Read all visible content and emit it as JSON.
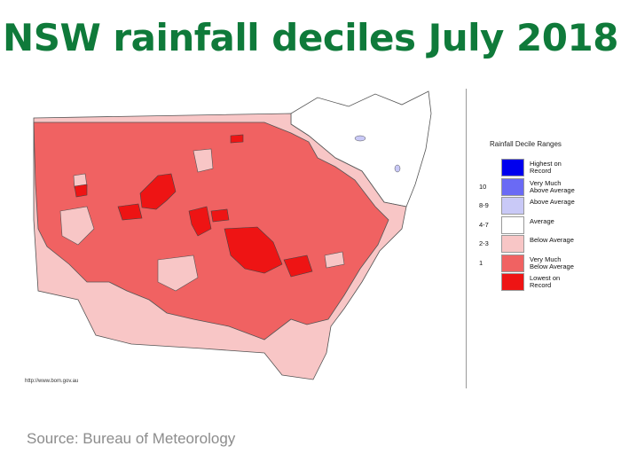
{
  "title": "NSW rainfall deciles July 2018",
  "map_url": "http://www.bom.gov.au",
  "source": "Source: Bureau of Meteorology",
  "legend": {
    "title": "Rainfall Decile Ranges",
    "items": [
      {
        "range": "",
        "label": "Highest on\nRecord",
        "color": "#0000ee"
      },
      {
        "range": "10",
        "label": "Very Much\nAbove Average",
        "color": "#6a6af5"
      },
      {
        "range": "8-9",
        "label": "Above Average",
        "color": "#c9c9f7"
      },
      {
        "range": "4-7",
        "label": "Average",
        "color": "#ffffff"
      },
      {
        "range": "2-3",
        "label": "Below Average",
        "color": "#f8c6c6"
      },
      {
        "range": "1",
        "label": "Very Much\nBelow Average",
        "color": "#f06262"
      },
      {
        "range": "",
        "label": "Lowest on\nRecord",
        "color": "#ee1414"
      }
    ]
  },
  "colors": {
    "title": "#0f7a3a",
    "very_much_below": "#f06262",
    "below": "#f8c6c6",
    "average": "#ffffff",
    "above": "#c9c9f7",
    "lowest": "#ee1414"
  }
}
